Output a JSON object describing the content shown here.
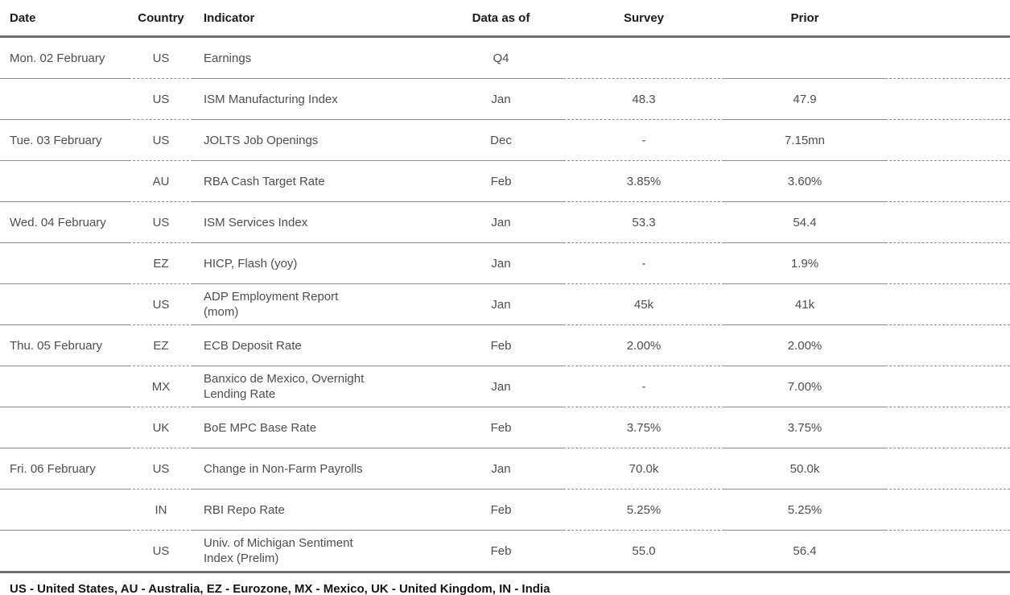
{
  "table": {
    "columns": [
      "Date",
      "Country",
      "Indicator",
      "Data as of",
      "Survey",
      "Prior"
    ],
    "rows": [
      {
        "date": "Mon. 02 February",
        "country": "US",
        "indicator": "Earnings",
        "data_as_of": "Q4",
        "survey": "",
        "prior": ""
      },
      {
        "date": "",
        "country": "US",
        "indicator": "ISM Manufacturing Index",
        "data_as_of": "Jan",
        "survey": "48.3",
        "prior": "47.9"
      },
      {
        "date": "Tue. 03 February",
        "country": "US",
        "indicator": "JOLTS Job Openings",
        "data_as_of": "Dec",
        "survey": "-",
        "prior": "7.15mn"
      },
      {
        "date": "",
        "country": "AU",
        "indicator": "RBA Cash Target Rate",
        "data_as_of": "Feb",
        "survey": "3.85%",
        "prior": "3.60%"
      },
      {
        "date": "Wed. 04 February",
        "country": "US",
        "indicator": "ISM Services Index",
        "data_as_of": "Jan",
        "survey": "53.3",
        "prior": "54.4"
      },
      {
        "date": "",
        "country": "EZ",
        "indicator": "HICP, Flash (yoy)",
        "data_as_of": "Jan",
        "survey": "-",
        "prior": "1.9%"
      },
      {
        "date": "",
        "country": "US",
        "indicator": "ADP Employment Report\n(mom)",
        "data_as_of": "Jan",
        "survey": "45k",
        "prior": "41k"
      },
      {
        "date": "Thu. 05 February",
        "country": "EZ",
        "indicator": "ECB Deposit Rate",
        "data_as_of": "Feb",
        "survey": "2.00%",
        "prior": "2.00%"
      },
      {
        "date": "",
        "country": "MX",
        "indicator": "Banxico de Mexico, Overnight\nLending Rate",
        "data_as_of": "Jan",
        "survey": "-",
        "prior": "7.00%"
      },
      {
        "date": "",
        "country": "UK",
        "indicator": "BoE MPC Base Rate",
        "data_as_of": "Feb",
        "survey": "3.75%",
        "prior": "3.75%"
      },
      {
        "date": "Fri. 06 February",
        "country": "US",
        "indicator": "Change in Non-Farm Payrolls",
        "data_as_of": "Jan",
        "survey": "70.0k",
        "prior": "50.0k"
      },
      {
        "date": "",
        "country": "IN",
        "indicator": "RBI Repo Rate",
        "data_as_of": "Feb",
        "survey": "5.25%",
        "prior": "5.25%"
      },
      {
        "date": "",
        "country": "US",
        "indicator": "Univ. of Michigan Sentiment\nIndex (Prelim)",
        "data_as_of": "Feb",
        "survey": "55.0",
        "prior": "56.4"
      }
    ]
  },
  "footer": {
    "legend": "US - United States, AU - Australia, EZ - Eurozone, MX - Mexico, UK - United Kingdom, IN - India"
  },
  "colors": {
    "thick_rule": "#6f6f6f",
    "thin_rule": "#8e8e8e",
    "header_text": "#1b1b1b",
    "body_text": "#4e4e4e",
    "background": "#ffffff"
  }
}
